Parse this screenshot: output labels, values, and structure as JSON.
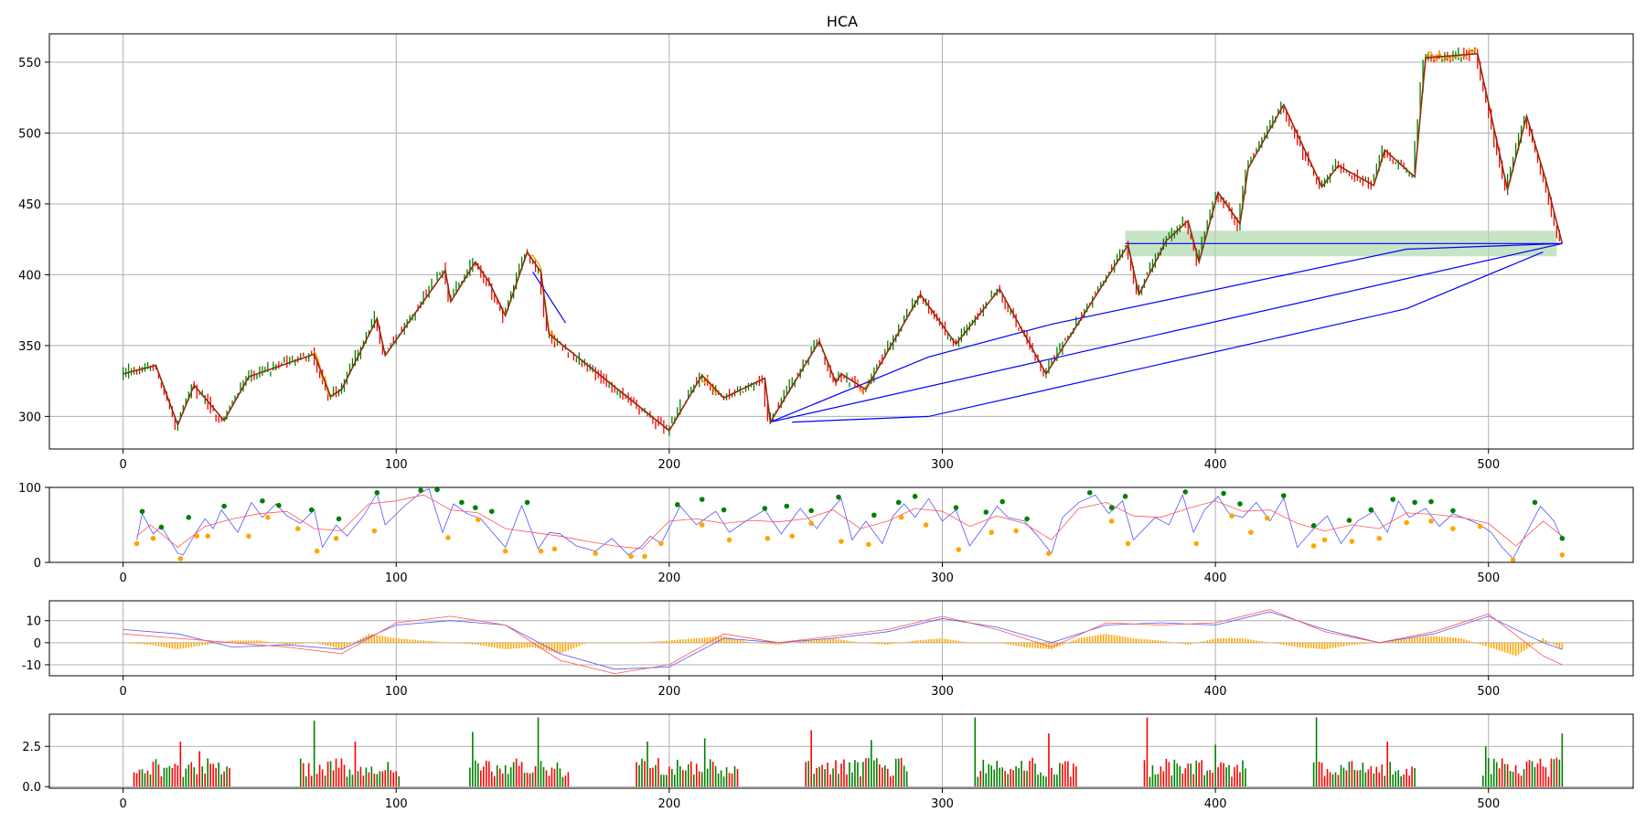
{
  "colors": {
    "up": "#008000",
    "down": "#ff0000",
    "zigzag": "#8b2f0f",
    "trend": "#0000ff",
    "highlight": "#ffa500",
    "band": "#a8d5a8",
    "k_line": "#5555ff",
    "d_line": "#ff5555",
    "grid": "#b0b0b0"
  },
  "chart_data": [
    {
      "type": "candlestick",
      "title": "HCA",
      "xlim": [
        -27,
        553
      ],
      "ylim": [
        277,
        570
      ],
      "xticks": [
        0,
        100,
        200,
        300,
        400,
        500
      ],
      "yticks": [
        300,
        350,
        400,
        450,
        500,
        550
      ],
      "grid": true,
      "zigzag": {
        "x": [
          0,
          12,
          20,
          26,
          37,
          46,
          70,
          76,
          80,
          93,
          96,
          118,
          120,
          129,
          134,
          140,
          148,
          153,
          156,
          200,
          212,
          220,
          235,
          237,
          255,
          261,
          263,
          272,
          292,
          305,
          321,
          338,
          368,
          372,
          382,
          390,
          394,
          401,
          409,
          412,
          425,
          439,
          445,
          458,
          462,
          473,
          477,
          496,
          507,
          514,
          521,
          527
        ],
        "y": [
          330,
          336,
          294,
          322,
          297,
          328,
          344,
          314,
          319,
          369,
          343,
          403,
          381,
          409,
          395,
          371,
          416,
          402,
          358,
          290,
          329,
          313,
          327,
          296,
          353,
          324,
          330,
          319,
          386,
          351,
          390,
          330,
          421,
          386,
          424,
          438,
          409,
          458,
          436,
          475,
          520,
          462,
          477,
          463,
          488,
          469,
          553,
          556,
          460,
          512,
          467,
          422
        ]
      },
      "candles_summary": {
        "bars": 527,
        "color_rule": "green = close above open, red = close below open",
        "orange_segments": [
          [
            70,
            76
          ],
          [
            148,
            158
          ],
          [
            212,
            218
          ],
          [
            268,
            275
          ],
          [
            458,
            462
          ],
          [
            475,
            496
          ]
        ]
      },
      "trendlines": [
        {
          "x": [
            237,
            527
          ],
          "y": [
            296,
            422
          ]
        },
        {
          "x": [
            237,
            295,
            340,
            470,
            527
          ],
          "y": [
            296,
            342,
            365,
            418,
            422
          ]
        },
        {
          "x": [
            245,
            295,
            470,
            520
          ],
          "y": [
            296,
            300,
            376,
            416
          ]
        },
        {
          "x": [
            367,
            527
          ],
          "y": [
            422,
            422
          ]
        },
        {
          "x": [
            150,
            162
          ],
          "y": [
            402,
            366
          ]
        }
      ],
      "zone": {
        "x": [
          367,
          525
        ],
        "y": [
          413,
          431
        ]
      }
    },
    {
      "type": "line",
      "title": "",
      "xlim": [
        -27,
        553
      ],
      "ylim": [
        0,
        100
      ],
      "yticks": [
        0,
        100
      ],
      "xticks": [
        0,
        100,
        200,
        300,
        400,
        500
      ],
      "series": [
        {
          "x": [
            5,
            7,
            11,
            14,
            20,
            22,
            27,
            30,
            33,
            36,
            42,
            47,
            51,
            56,
            60,
            65,
            70,
            73,
            78,
            82,
            88,
            93,
            96,
            103,
            109,
            112,
            117,
            121,
            126,
            131,
            140,
            146,
            152,
            156,
            160,
            166,
            173,
            179,
            185,
            190,
            193,
            197,
            204,
            210,
            217,
            222,
            228,
            235,
            241,
            248,
            254,
            258,
            263,
            267,
            272,
            278,
            282,
            286,
            290,
            295,
            300,
            305,
            310,
            316,
            320,
            324,
            330,
            335,
            340,
            344,
            350,
            356,
            361,
            366,
            370,
            378,
            383,
            388,
            392,
            396,
            401,
            405,
            410,
            415,
            420,
            425,
            430,
            436,
            441,
            446,
            452,
            458,
            463,
            467,
            471,
            477,
            482,
            487,
            492,
            497,
            501,
            505,
            509,
            514,
            519,
            524,
            527
          ],
          "y": [
            30,
            65,
            38,
            48,
            12,
            10,
            42,
            58,
            45,
            70,
            40,
            80,
            60,
            78,
            62,
            52,
            70,
            20,
            50,
            35,
            62,
            92,
            50,
            75,
            93,
            98,
            40,
            78,
            65,
            58,
            20,
            76,
            18,
            40,
            38,
            22,
            15,
            32,
            10,
            22,
            35,
            25,
            75,
            50,
            68,
            40,
            55,
            70,
            38,
            72,
            45,
            65,
            85,
            30,
            55,
            25,
            62,
            78,
            60,
            85,
            55,
            70,
            22,
            52,
            75,
            60,
            55,
            35,
            12,
            60,
            80,
            90,
            65,
            82,
            30,
            60,
            50,
            90,
            40,
            70,
            88,
            65,
            60,
            80,
            55,
            86,
            20,
            45,
            62,
            25,
            55,
            68,
            40,
            82,
            60,
            72,
            48,
            65,
            58,
            50,
            40,
            20,
            5,
            40,
            75,
            55,
            30
          ]
        },
        {
          "x": [
            5,
            10,
            20,
            30,
            40,
            50,
            60,
            70,
            80,
            90,
            100,
            110,
            120,
            130,
            140,
            150,
            160,
            170,
            180,
            190,
            200,
            210,
            220,
            230,
            240,
            250,
            260,
            270,
            280,
            290,
            300,
            310,
            320,
            330,
            340,
            350,
            360,
            370,
            380,
            390,
            400,
            410,
            420,
            430,
            440,
            450,
            460,
            470,
            480,
            490,
            500,
            510,
            520,
            527
          ],
          "y": [
            35,
            50,
            20,
            48,
            58,
            65,
            68,
            45,
            42,
            78,
            82,
            90,
            70,
            66,
            45,
            40,
            35,
            28,
            22,
            18,
            55,
            58,
            52,
            56,
            54,
            58,
            70,
            45,
            55,
            72,
            68,
            48,
            62,
            52,
            30,
            72,
            80,
            62,
            60,
            72,
            82,
            68,
            70,
            52,
            42,
            50,
            45,
            66,
            64,
            60,
            52,
            22,
            55,
            35
          ]
        }
      ],
      "peaks": {
        "x": [
          7,
          14,
          24,
          37,
          51,
          57,
          69,
          79,
          93,
          109,
          115,
          124,
          129,
          135,
          148,
          203,
          212,
          220,
          235,
          243,
          252,
          262,
          275,
          284,
          290,
          305,
          316,
          322,
          331,
          354,
          362,
          367,
          389,
          403,
          409,
          425,
          436,
          449,
          457,
          465,
          473,
          479,
          487,
          517,
          527
        ],
        "y": [
          68,
          47,
          60,
          75,
          82,
          76,
          70,
          58,
          93,
          96,
          97,
          80,
          73,
          68,
          80,
          77,
          84,
          70,
          72,
          75,
          69,
          87,
          63,
          80,
          88,
          73,
          67,
          81,
          58,
          93,
          73,
          88,
          94,
          92,
          78,
          89,
          49,
          56,
          70,
          84,
          80,
          81,
          69,
          80,
          32
        ]
      },
      "troughs": {
        "x": [
          5,
          11,
          21,
          27,
          31,
          46,
          53,
          64,
          71,
          78,
          92,
          119,
          130,
          140,
          153,
          158,
          173,
          186,
          191,
          197,
          212,
          222,
          236,
          245,
          252,
          263,
          273,
          285,
          294,
          306,
          318,
          327,
          339,
          362,
          368,
          393,
          406,
          413,
          419,
          436,
          440,
          450,
          460,
          470,
          479,
          487,
          497,
          509,
          527
        ],
        "y": [
          25,
          32,
          5,
          35,
          35,
          35,
          60,
          45,
          15,
          32,
          42,
          33,
          57,
          15,
          15,
          18,
          12,
          8,
          8,
          25,
          50,
          30,
          32,
          35,
          52,
          28,
          24,
          60,
          50,
          17,
          40,
          42,
          12,
          55,
          25,
          25,
          62,
          40,
          59,
          22,
          30,
          28,
          32,
          53,
          55,
          45,
          48,
          3,
          10
        ]
      }
    },
    {
      "type": "line+bar",
      "title": "",
      "xlim": [
        -27,
        553
      ],
      "ylim": [
        -15,
        19
      ],
      "yticks": [
        -10,
        0,
        10
      ],
      "xticks": [
        0,
        100,
        200,
        300,
        400,
        500
      ],
      "grid": true,
      "series": [
        {
          "x": [
            0,
            20,
            40,
            60,
            80,
            100,
            120,
            140,
            160,
            180,
            200,
            220,
            240,
            260,
            280,
            300,
            320,
            340,
            360,
            380,
            400,
            420,
            440,
            460,
            480,
            500,
            520,
            527
          ],
          "y": [
            6,
            4,
            -2,
            -1,
            -3,
            8,
            10,
            8,
            -5,
            -12,
            -11,
            2,
            0,
            2,
            5,
            11,
            7,
            0,
            8,
            9,
            8,
            14,
            6,
            0,
            4,
            12,
            0,
            -3
          ]
        },
        {
          "x": [
            0,
            20,
            40,
            60,
            80,
            100,
            120,
            140,
            160,
            180,
            200,
            220,
            240,
            260,
            280,
            300,
            320,
            340,
            360,
            380,
            400,
            420,
            440,
            460,
            480,
            500,
            520,
            527
          ],
          "y": [
            4,
            2,
            0,
            -2,
            -5,
            9,
            12,
            8,
            -8,
            -14,
            -10,
            4,
            0,
            3,
            6,
            12,
            6,
            -2,
            9,
            8,
            9,
            15,
            5,
            0,
            5,
            13,
            -6,
            -10
          ]
        }
      ],
      "histogram": {
        "x": [
          0,
          10,
          20,
          30,
          40,
          50,
          60,
          70,
          80,
          90,
          100,
          110,
          120,
          130,
          140,
          150,
          160,
          170,
          180,
          190,
          200,
          210,
          220,
          230,
          240,
          250,
          260,
          270,
          280,
          290,
          300,
          310,
          320,
          330,
          340,
          350,
          360,
          370,
          380,
          390,
          400,
          410,
          420,
          430,
          440,
          450,
          460,
          470,
          480,
          490,
          500,
          510,
          520,
          527
        ],
        "y": [
          0,
          -1,
          -3,
          -1,
          1,
          1,
          -1,
          0,
          -3,
          4,
          2,
          1,
          0,
          -1,
          -3,
          -2,
          -5,
          0,
          0,
          0,
          1,
          2,
          3,
          0,
          -1,
          1,
          2,
          0,
          -1,
          1,
          2,
          0,
          0,
          -2,
          -3,
          2,
          4,
          2,
          1,
          -1,
          2,
          2,
          0,
          -2,
          -3,
          -1,
          0,
          2,
          3,
          2,
          -2,
          -6,
          2,
          -3
        ]
      }
    },
    {
      "type": "bar",
      "title": "",
      "xlim": [
        -27,
        553
      ],
      "ylim": [
        -0.1,
        4.5
      ],
      "yticks": [
        0.0,
        2.5
      ],
      "ytick_labels": [
        "0.0",
        "2.5"
      ],
      "xticks": [
        0,
        100,
        200,
        300,
        400,
        500
      ],
      "grid": true,
      "groups": [
        {
          "start": 4,
          "end": 39
        },
        {
          "start": 65,
          "end": 101
        },
        {
          "start": 127,
          "end": 163
        },
        {
          "start": 188,
          "end": 225
        },
        {
          "start": 250,
          "end": 287
        },
        {
          "start": 312,
          "end": 349
        },
        {
          "start": 374,
          "end": 411
        },
        {
          "start": 436,
          "end": 473
        },
        {
          "start": 498,
          "end": 527
        }
      ],
      "peaks": {
        "x": [
          21,
          28,
          70,
          85,
          128,
          152,
          192,
          213,
          252,
          274,
          312,
          339,
          375,
          400,
          437,
          463,
          499,
          527
        ],
        "y": [
          2.8,
          2.2,
          4.1,
          2.8,
          3.4,
          4.3,
          2.8,
          3.0,
          3.5,
          2.9,
          4.3,
          3.3,
          4.3,
          2.6,
          4.3,
          2.8,
          2.5,
          3.3
        ]
      }
    }
  ]
}
